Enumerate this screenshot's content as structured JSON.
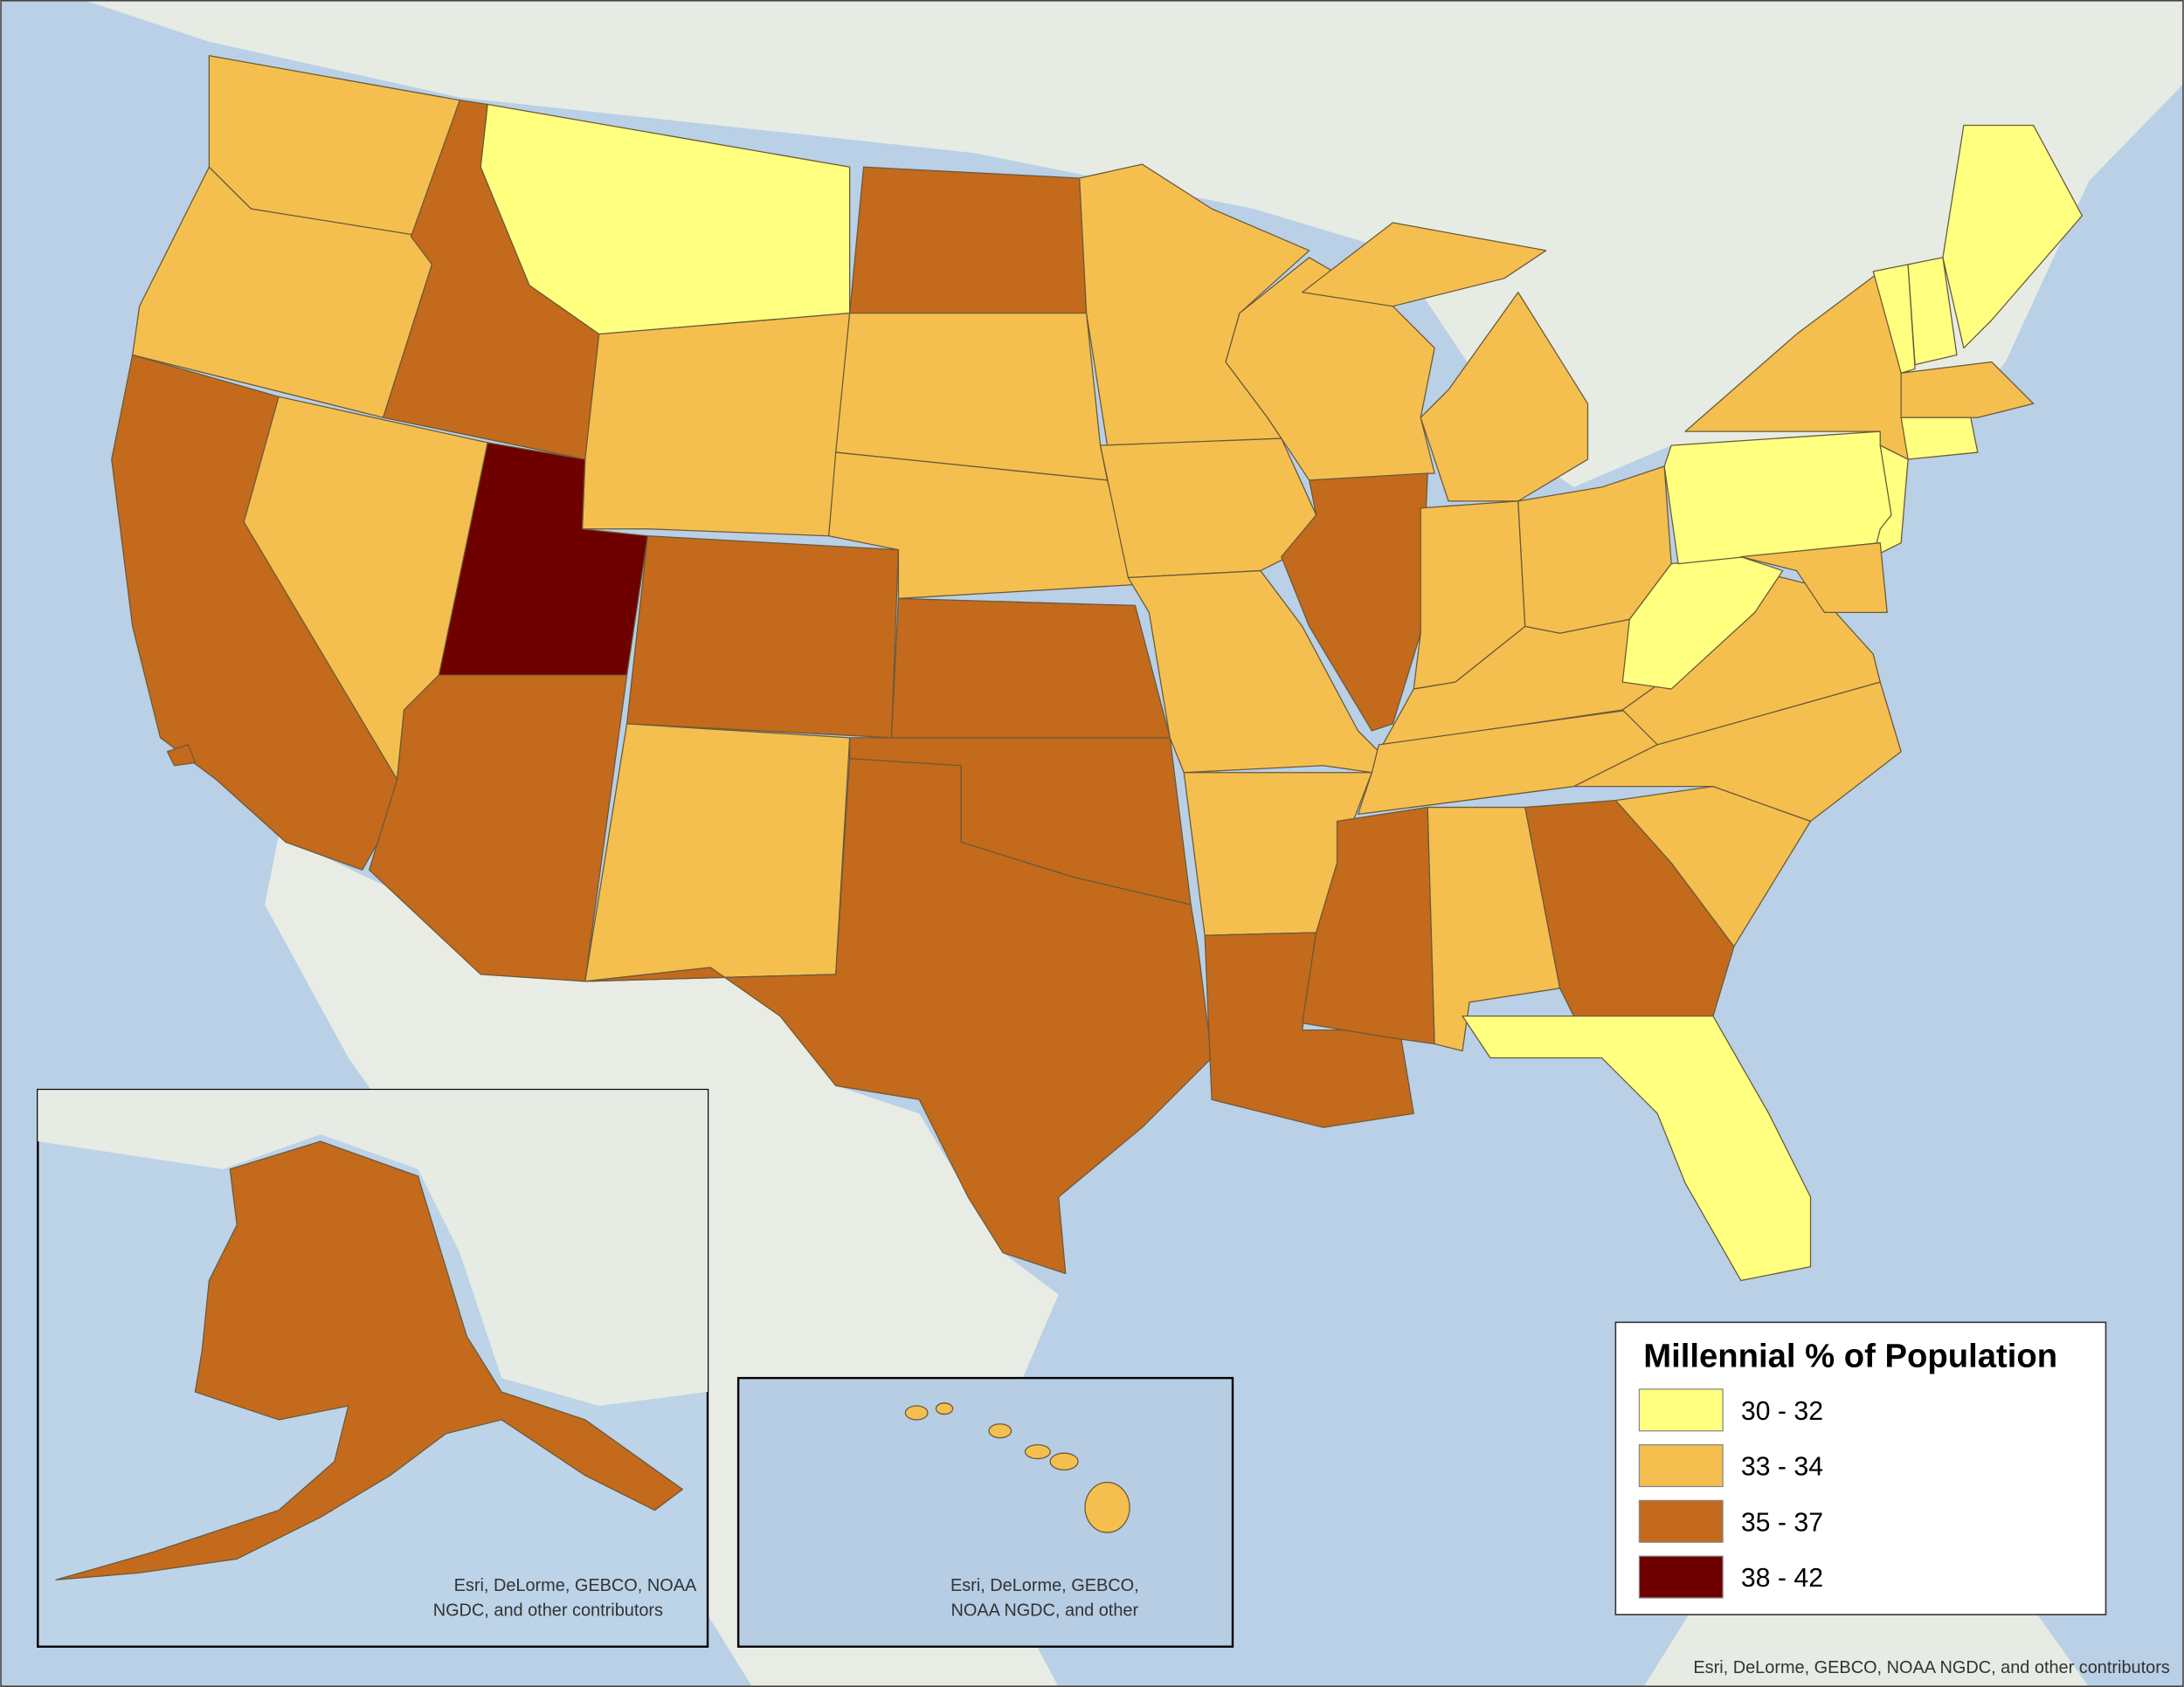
{
  "legend": {
    "title": "Millennial % of Population",
    "items": [
      {
        "label": "30 - 32",
        "color": "#ffff80"
      },
      {
        "label": "33 - 34",
        "color": "#f5bf4f"
      },
      {
        "label": "35 - 37",
        "color": "#c46a1d"
      },
      {
        "label": "38 - 42",
        "color": "#6e0000"
      }
    ]
  },
  "insets": {
    "alaska_attribution": [
      "Esri, DeLorme, GEBCO, NOAA",
      "NGDC, and other contributors"
    ],
    "hawaii_attribution": [
      "Esri, DeLorme, GEBCO,",
      "NOAA NGDC, and other"
    ]
  },
  "attribution": "Esri, DeLorme, GEBCO, NOAA NGDC, and other contributors"
}
